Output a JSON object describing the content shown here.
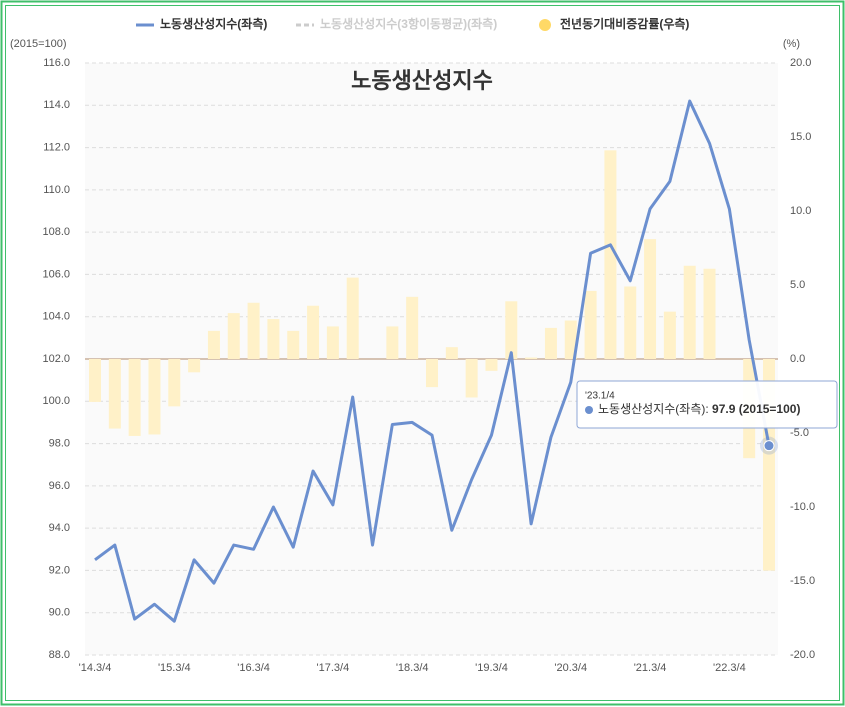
{
  "chart_data": {
    "type": "bar-line",
    "title": "노동생산성지수",
    "y_unit": "(2015=100)",
    "y2_unit": "(%)",
    "categories": [
      "'14.3/4",
      null,
      null,
      null,
      "'15.3/4",
      null,
      null,
      null,
      "'16.3/4",
      null,
      null,
      null,
      "'17.3/4",
      null,
      null,
      null,
      "'18.3/4",
      null,
      null,
      null,
      "'19.3/4",
      null,
      null,
      null,
      "'20.3/4",
      null,
      null,
      null,
      "'21.3/4",
      null,
      null,
      null,
      "'22.3/4",
      null,
      null
    ],
    "series": [
      {
        "name": "노동생산성지수(좌측)",
        "color": "#6b8fcf",
        "kind": "line",
        "axis": "y",
        "values": [
          92.5,
          93.2,
          89.7,
          90.4,
          89.6,
          92.5,
          91.4,
          93.2,
          93.0,
          95.0,
          93.1,
          96.7,
          95.1,
          100.2,
          93.2,
          98.9,
          99.0,
          98.4,
          93.9,
          96.3,
          98.4,
          102.3,
          94.2,
          98.3,
          100.9,
          107.0,
          107.4,
          105.7,
          109.1,
          110.4,
          114.2,
          112.2,
          109.1,
          102.9,
          97.9
        ]
      },
      {
        "name": "전년동기대비증감률(우측)",
        "color": "#fff1c8",
        "legend_color": "#ffd966",
        "kind": "bar",
        "axis": "y2",
        "values": [
          -2.9,
          -4.7,
          -5.2,
          -5.1,
          -3.2,
          -0.9,
          1.9,
          3.1,
          3.8,
          2.7,
          1.9,
          3.6,
          2.2,
          5.5,
          0,
          2.2,
          4.2,
          -1.9,
          0.8,
          -2.6,
          -0.8,
          3.9,
          0.1,
          2.1,
          2.6,
          4.6,
          14.1,
          4.9,
          8.1,
          3.2,
          6.3,
          6.1,
          0,
          -6.7,
          -14.3
        ]
      }
    ],
    "inactive_series": {
      "name": "노동생산성지수(3항이동평균)(좌측)",
      "color": "#cccccc"
    },
    "ylim": [
      88,
      116
    ],
    "yticks": [
      {
        "value": 88,
        "label": "88.0"
      },
      {
        "value": 90,
        "label": "90.0"
      },
      {
        "value": 92,
        "label": "92.0"
      },
      {
        "value": 94,
        "label": "94.0"
      },
      {
        "value": 96,
        "label": "96.0"
      },
      {
        "value": 98,
        "label": "98.0"
      },
      {
        "value": 100,
        "label": "100.0"
      },
      {
        "value": 102,
        "label": "102.0"
      },
      {
        "value": 104,
        "label": "104.0"
      },
      {
        "value": 106,
        "label": "106.0"
      },
      {
        "value": 108,
        "label": "108.0"
      },
      {
        "value": 110,
        "label": "110.0"
      },
      {
        "value": 112,
        "label": "112.0"
      },
      {
        "value": 114,
        "label": "114.0"
      },
      {
        "value": 116,
        "label": "116.0"
      }
    ],
    "y2lim": [
      -20,
      20
    ],
    "y2ticks": [
      {
        "value": -20,
        "label": "-20.0"
      },
      {
        "value": -15,
        "label": "-15.0"
      },
      {
        "value": -10,
        "label": "-10.0"
      },
      {
        "value": -5,
        "label": "-5.0"
      },
      {
        "value": 0,
        "label": "0.0"
      },
      {
        "value": 5,
        "label": "5.0"
      },
      {
        "value": 10,
        "label": "10.0"
      },
      {
        "value": 15,
        "label": "15.0"
      },
      {
        "value": 20,
        "label": "20.0"
      }
    ],
    "grid": true,
    "legend": "top",
    "tooltip": {
      "date": "'23.1/4",
      "label": "노동생산성지수(좌측):",
      "value": "97.9 (2015=100)"
    }
  }
}
